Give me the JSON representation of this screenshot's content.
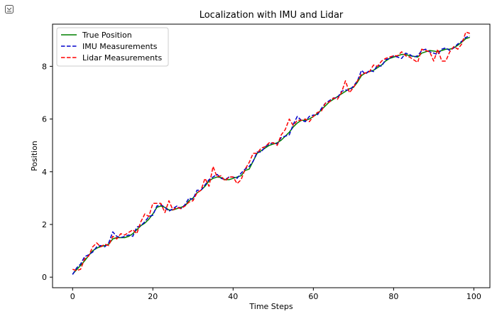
{
  "corner_icon": "output-collapse-icon",
  "chart_data": {
    "type": "line",
    "title": "Localization with IMU and Lidar",
    "xlabel": "Time Steps",
    "ylabel": "Position",
    "xlim": [
      -5,
      104
    ],
    "ylim": [
      -0.4,
      9.6
    ],
    "xticks": [
      0,
      20,
      40,
      60,
      80,
      100
    ],
    "yticks": [
      0,
      2,
      4,
      6,
      8
    ],
    "grid": false,
    "legend_position": "upper-left",
    "x": [
      0,
      1,
      2,
      3,
      4,
      5,
      6,
      7,
      8,
      9,
      10,
      11,
      12,
      13,
      14,
      15,
      16,
      17,
      18,
      19,
      20,
      21,
      22,
      23,
      24,
      25,
      26,
      27,
      28,
      29,
      30,
      31,
      32,
      33,
      34,
      35,
      36,
      37,
      38,
      39,
      40,
      41,
      42,
      43,
      44,
      45,
      46,
      47,
      48,
      49,
      50,
      51,
      52,
      53,
      54,
      55,
      56,
      57,
      58,
      59,
      60,
      61,
      62,
      63,
      64,
      65,
      66,
      67,
      68,
      69,
      70,
      71,
      72,
      73,
      74,
      75,
      76,
      77,
      78,
      79,
      80,
      81,
      82,
      83,
      84,
      85,
      86,
      87,
      88,
      89,
      90,
      91,
      92,
      93,
      94,
      95,
      96,
      97,
      98,
      99
    ],
    "series": [
      {
        "name": "True Position",
        "color": "#008000",
        "style": "solid",
        "values": [
          0.12,
          0.28,
          0.45,
          0.62,
          0.82,
          1.0,
          1.1,
          1.16,
          1.2,
          1.25,
          1.45,
          1.5,
          1.5,
          1.5,
          1.55,
          1.65,
          1.8,
          1.95,
          2.05,
          2.2,
          2.4,
          2.65,
          2.7,
          2.65,
          2.55,
          2.55,
          2.6,
          2.65,
          2.7,
          2.9,
          3.0,
          3.2,
          3.3,
          3.45,
          3.65,
          3.75,
          3.8,
          3.78,
          3.7,
          3.7,
          3.75,
          3.8,
          3.85,
          4.05,
          4.1,
          4.4,
          4.7,
          4.8,
          4.9,
          5.0,
          5.05,
          5.1,
          5.2,
          5.35,
          5.5,
          5.7,
          5.85,
          5.95,
          5.95,
          6.0,
          6.1,
          6.2,
          6.35,
          6.5,
          6.65,
          6.75,
          6.85,
          6.95,
          7.05,
          7.15,
          7.2,
          7.4,
          7.65,
          7.75,
          7.8,
          7.85,
          7.95,
          8.05,
          8.2,
          8.3,
          8.35,
          8.4,
          8.45,
          8.45,
          8.4,
          8.38,
          8.35,
          8.5,
          8.55,
          8.6,
          8.58,
          8.55,
          8.6,
          8.65,
          8.65,
          8.7,
          8.8,
          8.92,
          9.05,
          9.1
        ]
      },
      {
        "name": "IMU Measurements",
        "color": "#0000cc",
        "style": "dashed",
        "values": [
          0.1,
          0.35,
          0.5,
          0.78,
          0.85,
          0.95,
          1.15,
          1.2,
          1.15,
          1.3,
          1.72,
          1.55,
          1.5,
          1.55,
          1.6,
          1.55,
          1.9,
          1.95,
          2.1,
          2.3,
          2.35,
          2.7,
          2.75,
          2.65,
          2.5,
          2.6,
          2.7,
          2.6,
          2.75,
          3.0,
          2.95,
          3.3,
          3.3,
          3.5,
          3.7,
          3.8,
          3.9,
          3.75,
          3.7,
          3.8,
          3.8,
          3.75,
          3.95,
          4.1,
          4.2,
          4.4,
          4.75,
          4.75,
          4.95,
          5.05,
          5.1,
          5.05,
          5.3,
          5.35,
          5.4,
          5.8,
          6.1,
          5.95,
          5.9,
          6.1,
          6.15,
          6.15,
          6.4,
          6.6,
          6.7,
          6.8,
          6.8,
          7.05,
          7.1,
          7.1,
          7.25,
          7.45,
          7.85,
          7.7,
          7.85,
          7.8,
          8.05,
          8.0,
          8.25,
          8.3,
          8.4,
          8.35,
          8.3,
          8.5,
          8.45,
          8.35,
          8.4,
          8.6,
          8.65,
          8.55,
          8.5,
          8.45,
          8.65,
          8.7,
          8.6,
          8.7,
          8.85,
          8.95,
          9.1,
          9.15
        ]
      },
      {
        "name": "Lidar Measurements",
        "color": "#ff0000",
        "style": "dashed",
        "values": [
          0.3,
          0.25,
          0.3,
          0.7,
          0.8,
          1.15,
          1.3,
          1.15,
          1.25,
          1.2,
          1.55,
          1.45,
          1.65,
          1.6,
          1.7,
          1.8,
          1.65,
          2.1,
          2.4,
          2.3,
          2.8,
          2.8,
          2.8,
          2.45,
          2.9,
          2.55,
          2.65,
          2.6,
          2.7,
          2.85,
          2.9,
          3.2,
          3.3,
          3.75,
          3.45,
          4.2,
          3.8,
          3.85,
          3.65,
          3.8,
          3.8,
          3.55,
          3.7,
          4.1,
          4.35,
          4.7,
          4.7,
          4.9,
          4.95,
          5.1,
          5.1,
          5.0,
          5.4,
          5.6,
          6.0,
          5.75,
          5.95,
          5.95,
          6.0,
          5.9,
          6.1,
          6.25,
          6.3,
          6.6,
          6.65,
          6.8,
          6.75,
          7.0,
          7.45,
          7.0,
          7.2,
          7.45,
          7.7,
          7.75,
          7.8,
          8.05,
          8.0,
          8.2,
          8.3,
          8.35,
          8.4,
          8.4,
          8.55,
          8.4,
          8.35,
          8.25,
          8.15,
          8.65,
          8.6,
          8.55,
          8.2,
          8.65,
          8.2,
          8.2,
          8.55,
          8.75,
          8.65,
          8.85,
          9.3,
          9.25
        ]
      }
    ]
  }
}
